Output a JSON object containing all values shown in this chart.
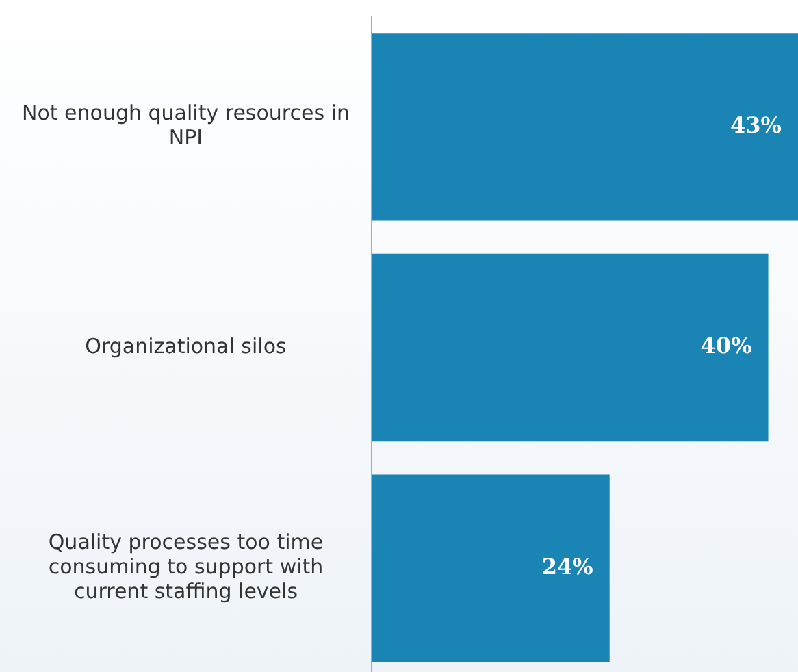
{
  "chart_data": {
    "type": "bar",
    "orientation": "horizontal",
    "xlim": [
      0,
      43
    ],
    "tick_labels": "y",
    "categories": [
      "Not enough quality resources in NPI",
      "Organizational silos",
      "Quality processes too time consuming to support with current staffing levels"
    ],
    "values": [
      43,
      40,
      24
    ],
    "value_labels": [
      "43%",
      "40%",
      "24%"
    ],
    "color": "#1a85b5",
    "legend": false
  }
}
